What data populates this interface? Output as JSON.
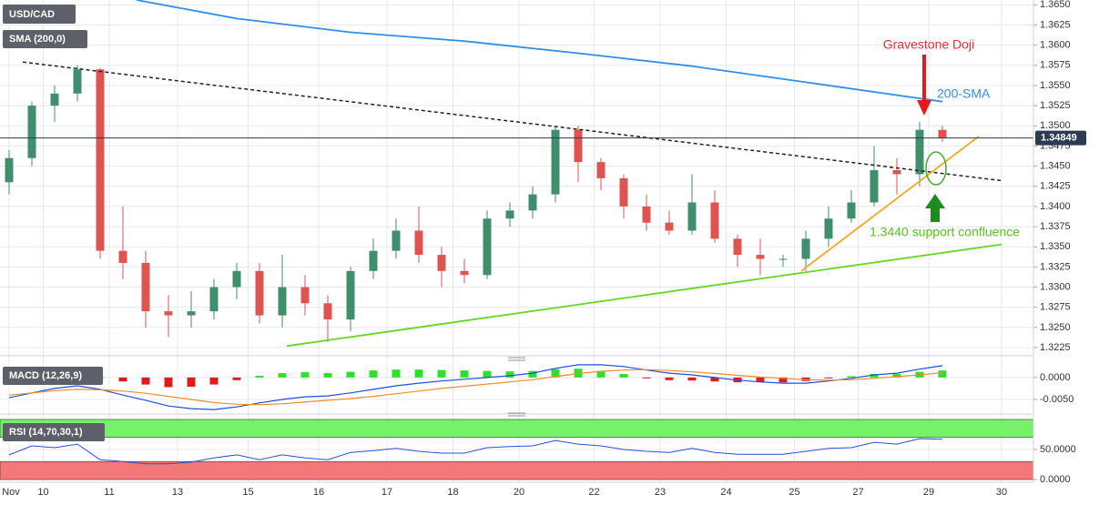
{
  "chart_data": [
    {
      "type": "candlestick",
      "title": "USD/CAD",
      "x": [
        0,
        1,
        2,
        3,
        4,
        5,
        6,
        7,
        8,
        9,
        10,
        11,
        12,
        13,
        14,
        15,
        16,
        17,
        18,
        19,
        20,
        21,
        22,
        23,
        24,
        25,
        26,
        27,
        28,
        29,
        30,
        31,
        32,
        33,
        34,
        35,
        36,
        37,
        38,
        39,
        40,
        41
      ],
      "open": [
        1.343,
        1.346,
        1.3525,
        1.354,
        1.357,
        1.3345,
        1.333,
        1.327,
        1.3265,
        1.327,
        1.33,
        1.332,
        1.3265,
        1.33,
        1.328,
        1.326,
        1.332,
        1.3345,
        1.337,
        1.334,
        1.332,
        1.3315,
        1.3385,
        1.3395,
        1.3415,
        1.3495,
        1.3455,
        1.3435,
        1.34,
        1.338,
        1.337,
        1.3405,
        1.336,
        1.334,
        1.3335,
        1.3335,
        1.336,
        1.3385,
        1.3405,
        1.3445,
        1.344,
        1.3495
      ],
      "high": [
        1.347,
        1.353,
        1.355,
        1.3575,
        1.3572,
        1.34,
        1.3345,
        1.329,
        1.3295,
        1.331,
        1.333,
        1.333,
        1.334,
        1.3315,
        1.329,
        1.3325,
        1.336,
        1.3385,
        1.34,
        1.335,
        1.3335,
        1.3395,
        1.3405,
        1.3425,
        1.35,
        1.35,
        1.346,
        1.344,
        1.3415,
        1.3395,
        1.344,
        1.342,
        1.3365,
        1.336,
        1.334,
        1.337,
        1.34,
        1.342,
        1.3475,
        1.346,
        1.3505,
        1.35
      ],
      "low": [
        1.3415,
        1.345,
        1.3505,
        1.353,
        1.3335,
        1.331,
        1.325,
        1.3238,
        1.325,
        1.326,
        1.3285,
        1.3255,
        1.325,
        1.3265,
        1.3232,
        1.3245,
        1.331,
        1.3335,
        1.333,
        1.33,
        1.3305,
        1.331,
        1.3375,
        1.3385,
        1.3405,
        1.343,
        1.342,
        1.3385,
        1.337,
        1.3365,
        1.3365,
        1.3355,
        1.3325,
        1.3315,
        1.3325,
        1.332,
        1.335,
        1.338,
        1.34,
        1.3415,
        1.3425,
        1.348
      ],
      "close": [
        1.346,
        1.3525,
        1.354,
        1.357,
        1.3345,
        1.333,
        1.327,
        1.3265,
        1.327,
        1.33,
        1.332,
        1.3265,
        1.33,
        1.328,
        1.326,
        1.332,
        1.3345,
        1.337,
        1.334,
        1.332,
        1.3315,
        1.3385,
        1.3395,
        1.3415,
        1.3495,
        1.3455,
        1.3435,
        1.34,
        1.338,
        1.337,
        1.3405,
        1.336,
        1.334,
        1.3335,
        1.3335,
        1.336,
        1.3385,
        1.3405,
        1.3445,
        1.344,
        1.3495,
        1.3485
      ],
      "up_color": "#3f8f6f",
      "down_color": "#de5450",
      "xlim": [
        -0.4,
        45
      ],
      "ylim": [
        1.3216,
        1.3656
      ],
      "yticks": [
        {
          "value": 1.3225,
          "label": "1.3225"
        },
        {
          "value": 1.325,
          "label": "1.3250"
        },
        {
          "value": 1.3275,
          "label": "1.3275"
        },
        {
          "value": 1.33,
          "label": "1.3300"
        },
        {
          "value": 1.3325,
          "label": "1.3325"
        },
        {
          "value": 1.335,
          "label": "1.3350"
        },
        {
          "value": 1.3375,
          "label": "1.3375"
        },
        {
          "value": 1.34,
          "label": "1.3400"
        },
        {
          "value": 1.3425,
          "label": "1.3425"
        },
        {
          "value": 1.345,
          "label": "1.3450"
        },
        {
          "value": 1.3475,
          "label": "1.3475"
        },
        {
          "value": 1.35,
          "label": "1.3500"
        },
        {
          "value": 1.3525,
          "label": "1.3525"
        },
        {
          "value": 1.355,
          "label": "1.3550"
        },
        {
          "value": 1.3575,
          "label": "1.3575"
        },
        {
          "value": 1.36,
          "label": "1.3600"
        },
        {
          "value": 1.3625,
          "label": "1.3625"
        },
        {
          "value": 1.365,
          "label": "1.3650"
        }
      ],
      "xticks": [
        {
          "value": 0,
          "label": "Nov"
        },
        {
          "value": 1.5,
          "label": "10"
        },
        {
          "value": 4.4,
          "label": "11"
        },
        {
          "value": 7.4,
          "label": "13"
        },
        {
          "value": 10.5,
          "label": "15"
        },
        {
          "value": 13.6,
          "label": "16"
        },
        {
          "value": 16.6,
          "label": "17"
        },
        {
          "value": 19.5,
          "label": "18"
        },
        {
          "value": 22.4,
          "label": "20"
        },
        {
          "value": 25.7,
          "label": "22"
        },
        {
          "value": 28.6,
          "label": "23"
        },
        {
          "value": 31.5,
          "label": "24"
        },
        {
          "value": 34.5,
          "label": "25"
        },
        {
          "value": 37.3,
          "label": "27"
        },
        {
          "value": 40.4,
          "label": "29"
        },
        {
          "value": 43.6,
          "label": "30"
        }
      ],
      "series": [
        {
          "name": "SMA (200,0)",
          "color": "#2f8fe8",
          "x": [
            5.6,
            10,
            15,
            20,
            25,
            30,
            35,
            40,
            41
          ],
          "values": [
            1.3656,
            1.3633,
            1.3616,
            1.3605,
            1.359,
            1.3574,
            1.3554,
            1.3534,
            1.353
          ]
        }
      ],
      "lines": [
        {
          "color": "#222222",
          "dashed": true,
          "x": [
            0.6,
            43.6
          ],
          "values": [
            1.3579,
            1.3432
          ]
        },
        {
          "color": "#66d61e",
          "dashed": false,
          "x": [
            12.2,
            43.6
          ],
          "values": [
            1.3227,
            1.3353
          ]
        },
        {
          "color": "#f5a623",
          "dashed": false,
          "x": [
            34.8,
            42.6
          ],
          "values": [
            1.332,
            1.3487
          ]
        }
      ],
      "last_price": {
        "value": 1.34849,
        "label": "1.34849"
      },
      "annotations": [
        "Gravestone Doji",
        "200-SMA",
        "1.3440 support confluence"
      ]
    },
    {
      "type": "macd",
      "title": "MACD (12,26,9)",
      "x": [
        0,
        1,
        2,
        3,
        4,
        5,
        6,
        7,
        8,
        9,
        10,
        11,
        12,
        13,
        14,
        15,
        16,
        17,
        18,
        19,
        20,
        21,
        22,
        23,
        24,
        25,
        26,
        27,
        28,
        29,
        30,
        31,
        32,
        33,
        34,
        35,
        36,
        37,
        38,
        39,
        40,
        41
      ],
      "xlim": [
        -0.4,
        45
      ],
      "ylim": [
        -0.0077,
        0.0035
      ],
      "yticks": [
        {
          "value": 0,
          "label": "0.0000"
        },
        {
          "value": -0.005,
          "label": "-0.0050"
        }
      ],
      "series": [
        {
          "color": "#1f4fd8",
          "values": [
            -0.0046,
            -0.0035,
            -0.0025,
            -0.0019,
            -0.0027,
            -0.004,
            -0.0052,
            -0.0065,
            -0.0071,
            -0.0073,
            -0.0067,
            -0.0058,
            -0.005,
            -0.0044,
            -0.0042,
            -0.0035,
            -0.0027,
            -0.0019,
            -0.0013,
            -0.0008,
            -0.0004,
            0.0,
            0.0004,
            0.001,
            0.0021,
            0.0029,
            0.0029,
            0.0025,
            0.0017,
            0.001,
            0.0006,
            0.0,
            -0.0006,
            -0.001,
            -0.0013,
            -0.0013,
            -0.0008,
            -0.0002,
            0.0006,
            0.001,
            0.0019,
            0.0027
          ]
        },
        {
          "color": "#f28c28",
          "values": [
            -0.004,
            -0.0035,
            -0.003,
            -0.0027,
            -0.0028,
            -0.0031,
            -0.0036,
            -0.0043,
            -0.005,
            -0.0057,
            -0.0061,
            -0.0062,
            -0.006,
            -0.0056,
            -0.0052,
            -0.0048,
            -0.0043,
            -0.0037,
            -0.0031,
            -0.0025,
            -0.002,
            -0.0015,
            -0.001,
            -0.0005,
            0.0002,
            0.0009,
            0.0014,
            0.0017,
            0.0018,
            0.0016,
            0.0013,
            0.0009,
            0.0005,
            0.0001,
            -0.0002,
            -0.0005,
            -0.0006,
            -0.0005,
            -0.0002,
            0.0002,
            0.0006,
            0.0011
          ]
        }
      ],
      "histogram": {
        "up_color": "#2ee02e",
        "down_color": "#e01b1b",
        "values": [
          -0.0006,
          0.0,
          0.0005,
          0.0008,
          0.0001,
          -0.0009,
          -0.0016,
          -0.0022,
          -0.0021,
          -0.0016,
          -0.0006,
          0.0004,
          0.001,
          0.0012,
          0.001,
          0.0013,
          0.0016,
          0.0018,
          0.0018,
          0.0017,
          0.0016,
          0.0015,
          0.0014,
          0.0015,
          0.0019,
          0.002,
          0.0015,
          0.0008,
          -0.0001,
          -0.0006,
          -0.0007,
          -0.0009,
          -0.0011,
          -0.0011,
          -0.0011,
          -0.0008,
          -0.0002,
          0.0003,
          0.0008,
          0.0008,
          0.0013,
          0.0016
        ]
      }
    },
    {
      "type": "rsi",
      "title": "RSI (14,70,30,1)",
      "x": [
        0,
        1,
        2,
        3,
        4,
        5,
        6,
        7,
        8,
        9,
        10,
        11,
        12,
        13,
        14,
        15,
        16,
        17,
        18,
        19,
        20,
        21,
        22,
        23,
        24,
        25,
        26,
        27,
        28,
        29,
        30,
        31,
        32,
        33,
        34,
        35,
        36,
        37,
        38,
        39,
        40,
        41
      ],
      "xlim": [
        -0.4,
        45
      ],
      "ylim": [
        0,
        100
      ],
      "yticks": [
        {
          "value": 50,
          "label": "50.0000"
        },
        {
          "value": 0,
          "label": "0.0000"
        }
      ],
      "overbought": 70,
      "oversold": 30,
      "overbought_color": "#77f06a",
      "oversold_color": "#f47878",
      "series": [
        {
          "color": "#2b4ed8",
          "values": [
            41,
            56,
            53,
            59,
            33,
            30,
            26,
            26,
            29,
            36,
            41,
            33,
            41,
            36,
            33,
            45,
            48,
            52,
            47,
            44,
            44,
            53,
            55,
            56,
            65,
            59,
            56,
            50,
            47,
            45,
            52,
            45,
            42,
            42,
            42,
            47,
            52,
            53,
            62,
            59,
            68,
            67
          ]
        }
      ]
    }
  ]
}
